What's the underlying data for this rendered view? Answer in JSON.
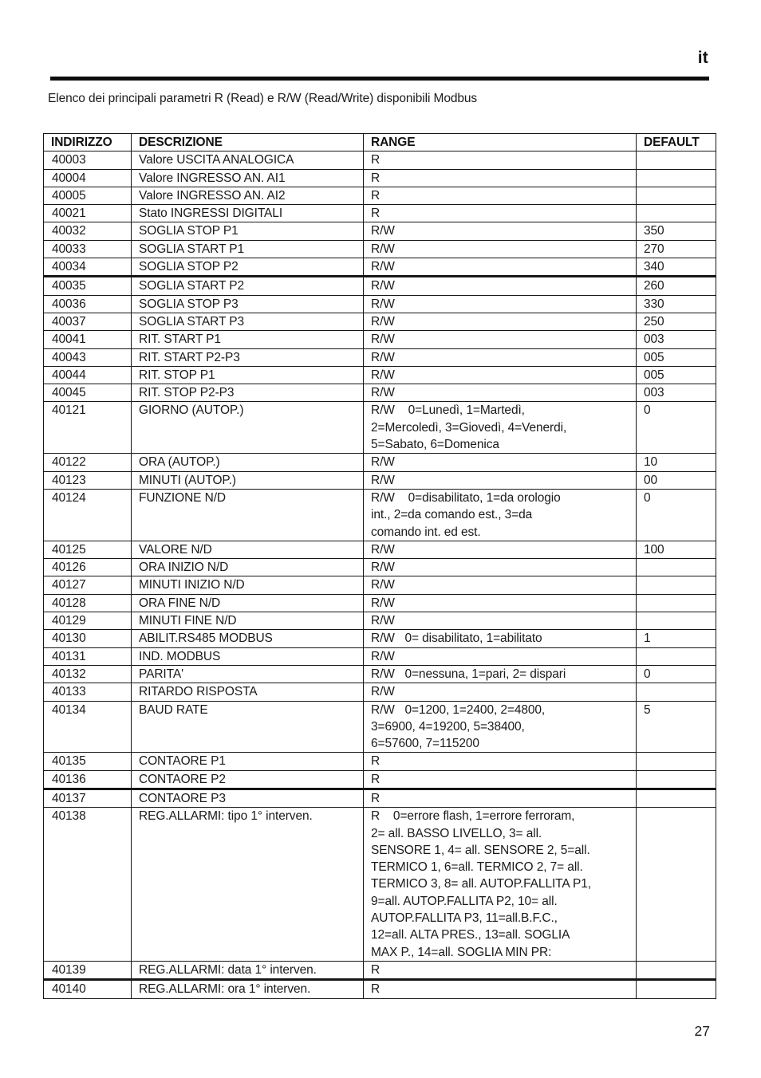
{
  "page": {
    "lang_tag": "it",
    "intro": "Elenco dei principali parametri R (Read) e R/W (Read/Write) disponibili Modbus",
    "page_number": "27"
  },
  "table": {
    "headers": [
      "INDIRIZZO",
      "DESCRIZIONE",
      "RANGE",
      "DEFAULT"
    ],
    "rows": [
      {
        "address": "40003",
        "description": "Valore USCITA ANALOGICA",
        "range": "R",
        "default": ""
      },
      {
        "address": "40004",
        "description": "Valore INGRESSO AN. AI1",
        "range": "R",
        "default": ""
      },
      {
        "address": "40005",
        "description": "Valore INGRESSO AN. AI2",
        "range": "R",
        "default": ""
      },
      {
        "address": "40021",
        "description": "Stato INGRESSI DIGITALI",
        "range": "R",
        "default": ""
      },
      {
        "address": "40032",
        "description": "SOGLIA STOP P1",
        "range": "R/W",
        "default": "350"
      },
      {
        "address": "40033",
        "description": "SOGLIA START P1",
        "range": "R/W",
        "default": "270"
      },
      {
        "address": "40034",
        "description": "SOGLIA STOP P2",
        "range": "R/W",
        "default": "340",
        "thick": true
      },
      {
        "address": "40035",
        "description": "SOGLIA START P2",
        "range": "R/W",
        "default": "260"
      },
      {
        "address": "40036",
        "description": "SOGLIA STOP P3",
        "range": "R/W",
        "default": "330"
      },
      {
        "address": "40037",
        "description": "SOGLIA START P3",
        "range": "R/W",
        "default": "250"
      },
      {
        "address": "40041",
        "description": "RIT. START P1",
        "range": "R/W",
        "default": "003"
      },
      {
        "address": "40043",
        "description": "RIT. START P2-P3",
        "range": "R/W",
        "default": "005"
      },
      {
        "address": "40044",
        "description": "RIT. STOP P1",
        "range": "R/W",
        "default": "005"
      },
      {
        "address": "40045",
        "description": "RIT. STOP P2-P3",
        "range": "R/W",
        "default": "003"
      },
      {
        "address": "40121",
        "description": "GIORNO (AUTOP.)",
        "range": "R/W    0=Lunedì, 1=Martedì,\n2=Mercoledì, 3=Giovedì, 4=Venerdi,\n5=Sabato, 6=Domenica",
        "default": "0"
      },
      {
        "address": "40122",
        "description": "ORA (AUTOP.)",
        "range": "R/W",
        "default": "10"
      },
      {
        "address": "40123",
        "description": "MINUTI (AUTOP.)",
        "range": "R/W",
        "default": "00"
      },
      {
        "address": "40124",
        "description": "FUNZIONE N/D",
        "range": "R/W    0=disabilitato, 1=da orologio\nint., 2=da comando est., 3=da\ncomando int. ed est.",
        "default": "0"
      },
      {
        "address": "40125",
        "description": "VALORE N/D",
        "range": "R/W",
        "default": "100"
      },
      {
        "address": "40126",
        "description": "ORA INIZIO N/D",
        "range": "R/W",
        "default": ""
      },
      {
        "address": "40127",
        "description": "MINUTI INIZIO N/D",
        "range": "R/W",
        "default": ""
      },
      {
        "address": "40128",
        "description": "ORA FINE N/D",
        "range": "R/W",
        "default": ""
      },
      {
        "address": "40129",
        "description": "MINUTI FINE N/D",
        "range": "R/W",
        "default": ""
      },
      {
        "address": "40130",
        "description": "ABILIT.RS485 MODBUS",
        "range": "R/W   0= disabilitato, 1=abilitato",
        "default": "1"
      },
      {
        "address": "40131",
        "description": "IND. MODBUS",
        "range": "R/W",
        "default": ""
      },
      {
        "address": "40132",
        "description": "PARITA'",
        "range": "R/W   0=nessuna, 1=pari, 2= dispari",
        "default": "0"
      },
      {
        "address": "40133",
        "description": "RITARDO RISPOSTA",
        "range": "R/W",
        "default": ""
      },
      {
        "address": "40134",
        "description": "BAUD RATE",
        "range": "R/W   0=1200, 1=2400, 2=4800,\n3=6900, 4=19200, 5=38400,\n6=57600, 7=115200",
        "default": "5"
      },
      {
        "address": "40135",
        "description": "CONTAORE P1",
        "range": "R",
        "default": ""
      },
      {
        "address": "40136",
        "description": "CONTAORE P2",
        "range": "R",
        "default": "",
        "thick": true
      },
      {
        "address": "40137",
        "description": "CONTAORE P3",
        "range": "R",
        "default": ""
      },
      {
        "address": "40138",
        "description": "REG.ALLARMI: tipo 1° interven.",
        "range": "R    0=errore flash, 1=errore ferroram,\n2= all. BASSO LIVELLO, 3= all.\nSENSORE 1, 4= all. SENSORE 2, 5=all.\nTERMICO 1, 6=all. TERMICO 2, 7= all.\nTERMICO 3, 8= all. AUTOP.FALLITA P1,\n9=all. AUTOP.FALLITA P2, 10= all.\nAUTOP.FALLITA P3, 11=all.B.F.C.,\n12=all. ALTA PRES., 13=all. SOGLIA\nMAX P., 14=all. SOGLIA MIN PR:",
        "default": ""
      },
      {
        "address": "40139",
        "description": "REG.ALLARMI: data 1° interven.",
        "range": "R",
        "default": "",
        "thick": true
      },
      {
        "address": "40140",
        "description": "REG.ALLARMI: ora 1° interven.",
        "range": "R",
        "default": ""
      }
    ]
  }
}
